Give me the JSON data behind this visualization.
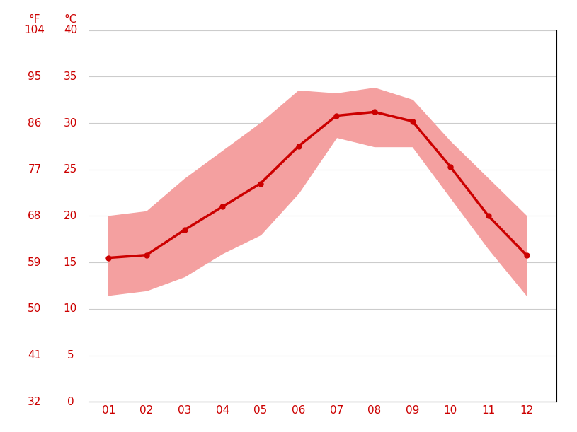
{
  "months": [
    1,
    2,
    3,
    4,
    5,
    6,
    7,
    8,
    9,
    10,
    11,
    12
  ],
  "month_labels": [
    "01",
    "02",
    "03",
    "04",
    "05",
    "06",
    "07",
    "08",
    "09",
    "10",
    "11",
    "12"
  ],
  "avg_temp_c": [
    15.5,
    15.8,
    18.5,
    21.0,
    23.5,
    27.5,
    30.8,
    31.2,
    30.2,
    25.3,
    20.0,
    15.8
  ],
  "max_temp_c": [
    20.0,
    20.5,
    24.0,
    27.0,
    30.0,
    33.5,
    33.2,
    33.8,
    32.5,
    28.0,
    24.0,
    20.0
  ],
  "min_temp_c": [
    11.5,
    12.0,
    13.5,
    16.0,
    18.0,
    22.5,
    28.5,
    27.5,
    27.5,
    22.0,
    16.5,
    11.5
  ],
  "ylim_c": [
    0,
    40
  ],
  "yticks_c": [
    0,
    5,
    10,
    15,
    20,
    25,
    30,
    35,
    40
  ],
  "yticks_f": [
    32,
    41,
    50,
    59,
    68,
    77,
    86,
    95,
    104
  ],
  "line_color": "#cc0000",
  "band_color": "#f4a0a0",
  "marker_color": "#cc0000",
  "grid_color": "#cccccc",
  "label_color": "#cc0000",
  "background_color": "#ffffff",
  "left_label_f": "°F",
  "right_label_c": "°C"
}
